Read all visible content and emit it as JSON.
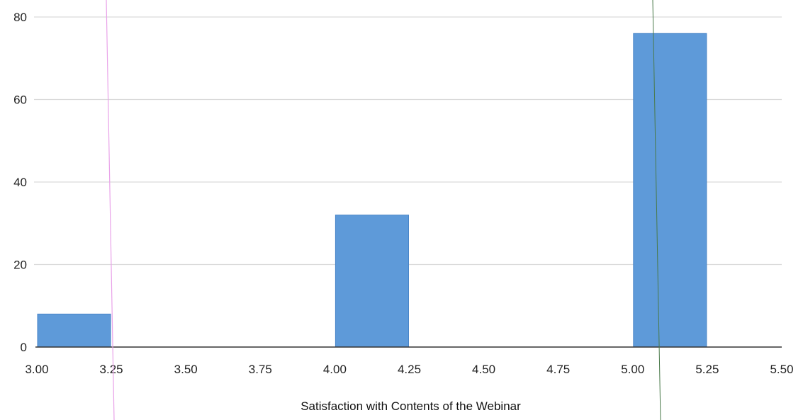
{
  "chart_data": {
    "type": "bar",
    "xlabel": "Satisfaction with Contents of the Webinar",
    "ylabel": "",
    "xlim": [
      3.0,
      5.5
    ],
    "ylim": [
      0,
      80
    ],
    "x_ticks": [
      "3.00",
      "3.25",
      "3.50",
      "3.75",
      "4.00",
      "4.25",
      "4.50",
      "4.75",
      "5.00",
      "5.25",
      "5.50"
    ],
    "y_ticks": [
      "0",
      "20",
      "40",
      "60",
      "80"
    ],
    "grid": true,
    "bars": [
      {
        "x_start": 3.0,
        "x_end": 3.25,
        "value": 8
      },
      {
        "x_start": 4.0,
        "x_end": 4.25,
        "value": 32
      },
      {
        "x_start": 5.0,
        "x_end": 5.25,
        "value": 76
      }
    ],
    "colors": {
      "bar": "#5e9ad9",
      "bar_edge": "#4a86c8",
      "grid": "#d9d9d9",
      "axis": "#333333"
    }
  }
}
